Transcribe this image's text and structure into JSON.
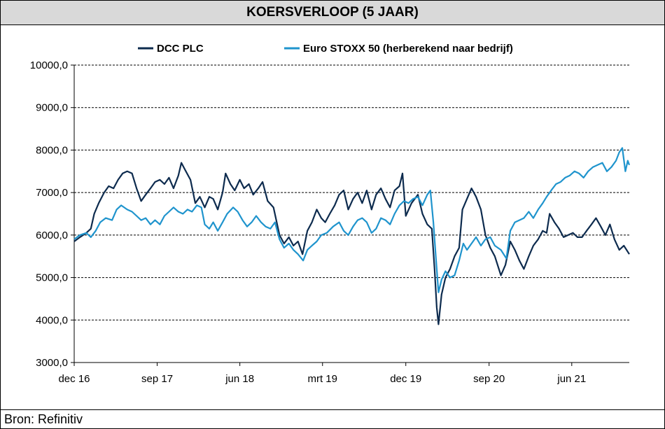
{
  "chart_data": {
    "type": "line",
    "title": "KOERSVERLOOP (5 JAAR)",
    "source": "Bron: Refinitiv",
    "ylim": [
      3000,
      10000
    ],
    "y_ticks": [
      "3000,0",
      "4000,0",
      "5000,0",
      "6000,0",
      "7000,0",
      "8000,0",
      "9000,0",
      "10000,0"
    ],
    "y_tick_values": [
      3000,
      4000,
      5000,
      6000,
      7000,
      8000,
      9000,
      10000
    ],
    "x_range": [
      "2016-12-01",
      "2021-12-08"
    ],
    "x_ticks": [
      {
        "label": "dec 16",
        "date": "2016-12-01"
      },
      {
        "label": "sep 17",
        "date": "2017-09-01"
      },
      {
        "label": "jun 18",
        "date": "2018-06-01"
      },
      {
        "label": "mrt 19",
        "date": "2019-03-01"
      },
      {
        "label": "dec 19",
        "date": "2019-12-01"
      },
      {
        "label": "sep 20",
        "date": "2020-09-01"
      },
      {
        "label": "jun 21",
        "date": "2021-06-01"
      }
    ],
    "grid": "horizontal-dashed",
    "legend_position": "top",
    "series": [
      {
        "name": "DCC PLC",
        "color": "#0d2b4e",
        "points": [
          [
            "2016-12-01",
            5850
          ],
          [
            "2016-12-20",
            5950
          ],
          [
            "2017-01-10",
            6050
          ],
          [
            "2017-01-25",
            6150
          ],
          [
            "2017-02-05",
            6500
          ],
          [
            "2017-02-20",
            6750
          ],
          [
            "2017-03-10",
            7000
          ],
          [
            "2017-03-25",
            7150
          ],
          [
            "2017-04-10",
            7100
          ],
          [
            "2017-04-25",
            7300
          ],
          [
            "2017-05-10",
            7450
          ],
          [
            "2017-05-25",
            7500
          ],
          [
            "2017-06-10",
            7450
          ],
          [
            "2017-06-25",
            7100
          ],
          [
            "2017-07-10",
            6800
          ],
          [
            "2017-07-25",
            6950
          ],
          [
            "2017-08-10",
            7100
          ],
          [
            "2017-08-25",
            7250
          ],
          [
            "2017-09-10",
            7300
          ],
          [
            "2017-09-25",
            7200
          ],
          [
            "2017-10-10",
            7350
          ],
          [
            "2017-10-25",
            7100
          ],
          [
            "2017-11-10",
            7400
          ],
          [
            "2017-11-20",
            7700
          ],
          [
            "2017-12-01",
            7550
          ],
          [
            "2017-12-20",
            7300
          ],
          [
            "2018-01-05",
            6750
          ],
          [
            "2018-01-20",
            6900
          ],
          [
            "2018-02-05",
            6650
          ],
          [
            "2018-02-20",
            6900
          ],
          [
            "2018-03-05",
            6850
          ],
          [
            "2018-03-20",
            6600
          ],
          [
            "2018-04-05",
            7000
          ],
          [
            "2018-04-15",
            7450
          ],
          [
            "2018-05-01",
            7200
          ],
          [
            "2018-05-15",
            7050
          ],
          [
            "2018-06-01",
            7300
          ],
          [
            "2018-06-15",
            7100
          ],
          [
            "2018-07-01",
            7200
          ],
          [
            "2018-07-15",
            6950
          ],
          [
            "2018-08-01",
            7100
          ],
          [
            "2018-08-15",
            7250
          ],
          [
            "2018-09-01",
            6800
          ],
          [
            "2018-09-20",
            6650
          ],
          [
            "2018-10-10",
            6000
          ],
          [
            "2018-10-25",
            5800
          ],
          [
            "2018-11-10",
            5950
          ],
          [
            "2018-11-25",
            5750
          ],
          [
            "2018-12-10",
            5850
          ],
          [
            "2018-12-25",
            5550
          ],
          [
            "2019-01-10",
            6100
          ],
          [
            "2019-01-25",
            6300
          ],
          [
            "2019-02-10",
            6600
          ],
          [
            "2019-02-25",
            6400
          ],
          [
            "2019-03-10",
            6300
          ],
          [
            "2019-03-25",
            6500
          ],
          [
            "2019-04-10",
            6700
          ],
          [
            "2019-04-25",
            6950
          ],
          [
            "2019-05-10",
            7050
          ],
          [
            "2019-05-25",
            6600
          ],
          [
            "2019-06-10",
            6850
          ],
          [
            "2019-06-25",
            7000
          ],
          [
            "2019-07-10",
            6750
          ],
          [
            "2019-07-25",
            7050
          ],
          [
            "2019-08-10",
            6600
          ],
          [
            "2019-08-25",
            6950
          ],
          [
            "2019-09-10",
            7100
          ],
          [
            "2019-09-25",
            6850
          ],
          [
            "2019-10-10",
            6650
          ],
          [
            "2019-10-25",
            7050
          ],
          [
            "2019-11-10",
            7150
          ],
          [
            "2019-11-20",
            7450
          ],
          [
            "2019-12-01",
            6450
          ],
          [
            "2019-12-20",
            6750
          ],
          [
            "2020-01-10",
            6950
          ],
          [
            "2020-01-25",
            6500
          ],
          [
            "2020-02-10",
            6250
          ],
          [
            "2020-02-25",
            6150
          ],
          [
            "2020-03-05",
            5200
          ],
          [
            "2020-03-12",
            4300
          ],
          [
            "2020-03-18",
            3900
          ],
          [
            "2020-03-28",
            4600
          ],
          [
            "2020-04-10",
            5000
          ],
          [
            "2020-04-25",
            5200
          ],
          [
            "2020-05-10",
            5500
          ],
          [
            "2020-05-25",
            5700
          ],
          [
            "2020-06-05",
            6600
          ],
          [
            "2020-06-20",
            6850
          ],
          [
            "2020-07-05",
            7100
          ],
          [
            "2020-07-20",
            6900
          ],
          [
            "2020-08-05",
            6600
          ],
          [
            "2020-08-20",
            6000
          ],
          [
            "2020-09-05",
            5700
          ],
          [
            "2020-09-20",
            5500
          ],
          [
            "2020-10-10",
            5050
          ],
          [
            "2020-10-25",
            5300
          ],
          [
            "2020-11-10",
            5850
          ],
          [
            "2020-11-25",
            5650
          ],
          [
            "2020-12-10",
            5400
          ],
          [
            "2020-12-25",
            5200
          ],
          [
            "2021-01-10",
            5500
          ],
          [
            "2021-01-25",
            5750
          ],
          [
            "2021-02-10",
            5900
          ],
          [
            "2021-02-25",
            6100
          ],
          [
            "2021-03-10",
            6050
          ],
          [
            "2021-03-20",
            6500
          ],
          [
            "2021-04-05",
            6300
          ],
          [
            "2021-04-20",
            6150
          ],
          [
            "2021-05-05",
            5950
          ],
          [
            "2021-05-20",
            6000
          ],
          [
            "2021-06-05",
            6050
          ],
          [
            "2021-06-20",
            5950
          ],
          [
            "2021-07-05",
            5950
          ],
          [
            "2021-07-20",
            6100
          ],
          [
            "2021-08-05",
            6250
          ],
          [
            "2021-08-20",
            6400
          ],
          [
            "2021-09-05",
            6200
          ],
          [
            "2021-09-20",
            6000
          ],
          [
            "2021-10-05",
            6250
          ],
          [
            "2021-10-20",
            5900
          ],
          [
            "2021-11-05",
            5650
          ],
          [
            "2021-11-20",
            5750
          ],
          [
            "2021-12-08",
            5550
          ]
        ]
      },
      {
        "name": "Euro STOXX 50 (herberekend naar bedrijf)",
        "color": "#1f94cd",
        "points": [
          [
            "2016-12-01",
            5900
          ],
          [
            "2016-12-20",
            6000
          ],
          [
            "2017-01-10",
            6050
          ],
          [
            "2017-01-25",
            5950
          ],
          [
            "2017-02-10",
            6100
          ],
          [
            "2017-02-25",
            6300
          ],
          [
            "2017-03-15",
            6400
          ],
          [
            "2017-04-05",
            6350
          ],
          [
            "2017-04-20",
            6600
          ],
          [
            "2017-05-05",
            6700
          ],
          [
            "2017-05-25",
            6600
          ],
          [
            "2017-06-10",
            6550
          ],
          [
            "2017-06-25",
            6450
          ],
          [
            "2017-07-10",
            6350
          ],
          [
            "2017-07-25",
            6400
          ],
          [
            "2017-08-10",
            6250
          ],
          [
            "2017-08-25",
            6350
          ],
          [
            "2017-09-10",
            6250
          ],
          [
            "2017-09-25",
            6450
          ],
          [
            "2017-10-10",
            6550
          ],
          [
            "2017-10-25",
            6650
          ],
          [
            "2017-11-10",
            6550
          ],
          [
            "2017-11-25",
            6500
          ],
          [
            "2017-12-10",
            6600
          ],
          [
            "2017-12-25",
            6550
          ],
          [
            "2018-01-10",
            6700
          ],
          [
            "2018-01-25",
            6650
          ],
          [
            "2018-02-05",
            6250
          ],
          [
            "2018-02-20",
            6150
          ],
          [
            "2018-03-05",
            6300
          ],
          [
            "2018-03-20",
            6100
          ],
          [
            "2018-04-05",
            6300
          ],
          [
            "2018-04-20",
            6500
          ],
          [
            "2018-05-10",
            6650
          ],
          [
            "2018-05-25",
            6550
          ],
          [
            "2018-06-10",
            6350
          ],
          [
            "2018-06-25",
            6200
          ],
          [
            "2018-07-10",
            6300
          ],
          [
            "2018-07-25",
            6450
          ],
          [
            "2018-08-10",
            6300
          ],
          [
            "2018-08-25",
            6200
          ],
          [
            "2018-09-10",
            6150
          ],
          [
            "2018-09-25",
            6300
          ],
          [
            "2018-10-10",
            5900
          ],
          [
            "2018-10-25",
            5700
          ],
          [
            "2018-11-10",
            5800
          ],
          [
            "2018-11-25",
            5650
          ],
          [
            "2018-12-10",
            5550
          ],
          [
            "2018-12-27",
            5400
          ],
          [
            "2019-01-10",
            5650
          ],
          [
            "2019-01-25",
            5750
          ],
          [
            "2019-02-10",
            5850
          ],
          [
            "2019-02-25",
            6000
          ],
          [
            "2019-03-15",
            6050
          ],
          [
            "2019-04-05",
            6200
          ],
          [
            "2019-04-25",
            6300
          ],
          [
            "2019-05-10",
            6100
          ],
          [
            "2019-05-25",
            6000
          ],
          [
            "2019-06-10",
            6200
          ],
          [
            "2019-06-25",
            6350
          ],
          [
            "2019-07-10",
            6400
          ],
          [
            "2019-07-25",
            6300
          ],
          [
            "2019-08-10",
            6050
          ],
          [
            "2019-08-25",
            6150
          ],
          [
            "2019-09-10",
            6400
          ],
          [
            "2019-09-25",
            6350
          ],
          [
            "2019-10-10",
            6250
          ],
          [
            "2019-10-25",
            6500
          ],
          [
            "2019-11-10",
            6700
          ],
          [
            "2019-11-25",
            6800
          ],
          [
            "2019-12-10",
            6750
          ],
          [
            "2019-12-25",
            6850
          ],
          [
            "2020-01-10",
            6900
          ],
          [
            "2020-01-25",
            6700
          ],
          [
            "2020-02-10",
            6950
          ],
          [
            "2020-02-20",
            7050
          ],
          [
            "2020-03-01",
            6300
          ],
          [
            "2020-03-10",
            5400
          ],
          [
            "2020-03-18",
            4650
          ],
          [
            "2020-03-28",
            4950
          ],
          [
            "2020-04-10",
            5150
          ],
          [
            "2020-04-25",
            5000
          ],
          [
            "2020-05-10",
            5050
          ],
          [
            "2020-05-25",
            5400
          ],
          [
            "2020-06-08",
            5800
          ],
          [
            "2020-06-20",
            5650
          ],
          [
            "2020-07-05",
            5800
          ],
          [
            "2020-07-20",
            5950
          ],
          [
            "2020-08-05",
            5750
          ],
          [
            "2020-08-20",
            5900
          ],
          [
            "2020-09-05",
            5950
          ],
          [
            "2020-09-20",
            5750
          ],
          [
            "2020-10-10",
            5650
          ],
          [
            "2020-10-28",
            5450
          ],
          [
            "2020-11-10",
            6100
          ],
          [
            "2020-11-25",
            6300
          ],
          [
            "2020-12-10",
            6350
          ],
          [
            "2020-12-25",
            6400
          ],
          [
            "2021-01-10",
            6550
          ],
          [
            "2021-01-25",
            6400
          ],
          [
            "2021-02-10",
            6600
          ],
          [
            "2021-02-25",
            6750
          ],
          [
            "2021-03-10",
            6900
          ],
          [
            "2021-03-25",
            7050
          ],
          [
            "2021-04-10",
            7200
          ],
          [
            "2021-04-25",
            7250
          ],
          [
            "2021-05-10",
            7350
          ],
          [
            "2021-05-25",
            7400
          ],
          [
            "2021-06-10",
            7500
          ],
          [
            "2021-06-25",
            7450
          ],
          [
            "2021-07-10",
            7350
          ],
          [
            "2021-07-25",
            7500
          ],
          [
            "2021-08-10",
            7600
          ],
          [
            "2021-08-25",
            7650
          ],
          [
            "2021-09-10",
            7700
          ],
          [
            "2021-09-25",
            7500
          ],
          [
            "2021-10-10",
            7600
          ],
          [
            "2021-10-25",
            7750
          ],
          [
            "2021-11-05",
            7950
          ],
          [
            "2021-11-15",
            8050
          ],
          [
            "2021-11-25",
            7500
          ],
          [
            "2021-12-03",
            7750
          ],
          [
            "2021-12-08",
            7650
          ]
        ]
      }
    ]
  }
}
